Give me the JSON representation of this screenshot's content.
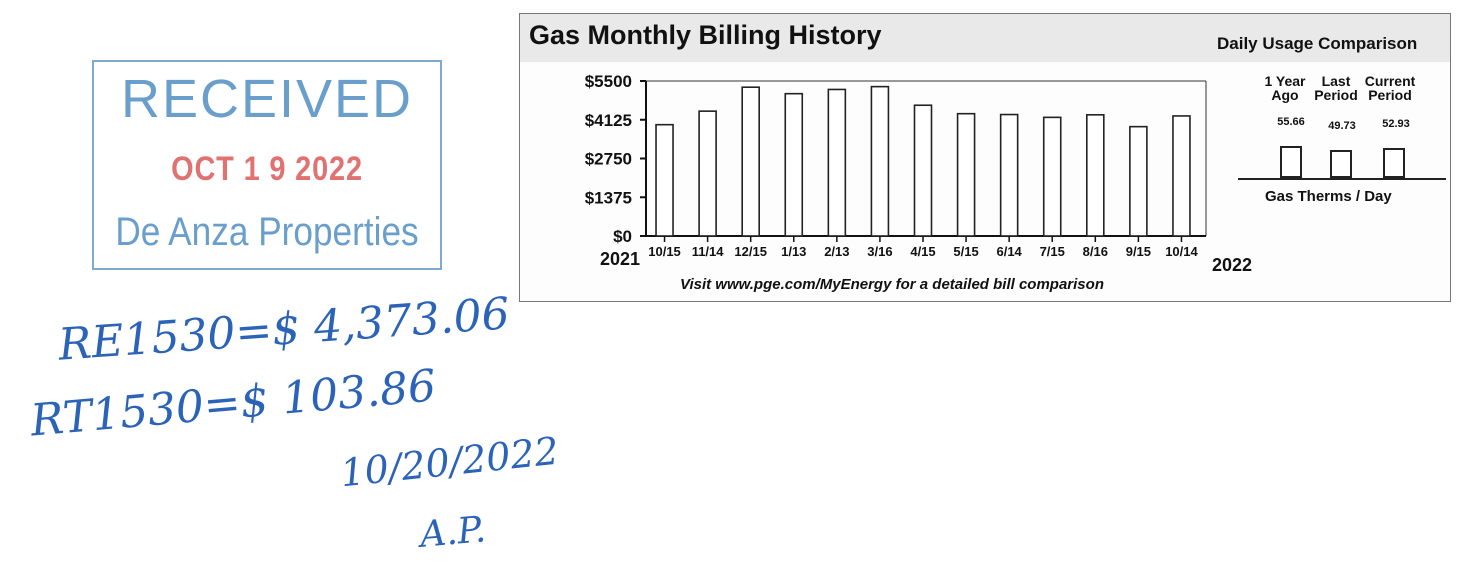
{
  "stamp": {
    "received": "RECEIVED",
    "date": "OCT 1 9 2022",
    "company": "De Anza Properties"
  },
  "bill": {
    "title": "Gas Monthly Billing History",
    "caption": "Visit www.pge.com/MyEnergy for a detailed bill comparison"
  },
  "chart_data": {
    "type": "bar",
    "title": "Gas Monthly Billing History",
    "categories": [
      "10/15",
      "11/14",
      "12/15",
      "1/13",
      "2/13",
      "3/16",
      "4/15",
      "5/15",
      "6/14",
      "7/15",
      "8/16",
      "9/15",
      "10/14"
    ],
    "series": [
      {
        "values": [
          3950,
          4430,
          5280,
          5050,
          5200,
          5300,
          4640,
          4340,
          4310,
          4210,
          4300,
          3880,
          4260
        ]
      }
    ],
    "y_ticks": [
      "$0",
      "$1375",
      "$2750",
      "$4125",
      "$5500"
    ],
    "ylim": [
      0,
      5500
    ],
    "x_start_label": "2021",
    "x_end_label": "2022",
    "xlabel": "",
    "ylabel": "",
    "grid": false
  },
  "daily_usage": {
    "title": "Daily Usage Comparison",
    "items": [
      {
        "label_line1": "1 Year",
        "label_line2": "Ago",
        "value": "55.66",
        "value_num": 55.66
      },
      {
        "label_line1": "Last",
        "label_line2": "Period",
        "value": "49.73",
        "value_num": 49.73
      },
      {
        "label_line1": "Current",
        "label_line2": "Period",
        "value": "52.93",
        "value_num": 52.93
      }
    ],
    "caption": "Gas Therms / Day"
  },
  "handwriting": {
    "line1": "RE1530=$ 4,373.06",
    "line2": "RT1530=$ 103.86",
    "date": "10/20/2022",
    "initials": "A.P."
  }
}
